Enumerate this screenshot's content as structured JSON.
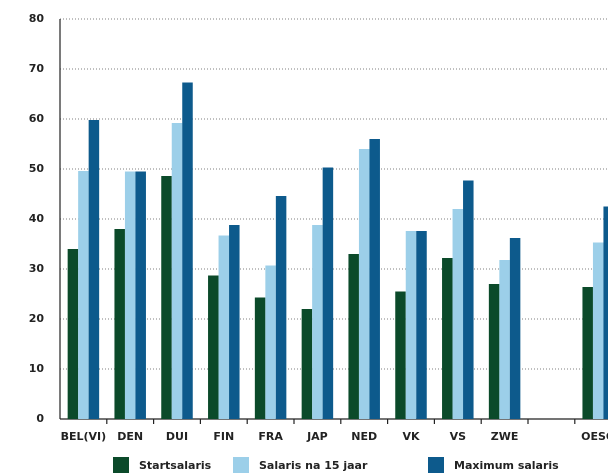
{
  "chart_data": {
    "type": "bar",
    "categories": [
      "BEL(VI)",
      "DEN",
      "DUI",
      "FIN",
      "FRA",
      "JAP",
      "NED",
      "VK",
      "VS",
      "ZWE",
      null,
      "OESO"
    ],
    "series": [
      {
        "name": "Startsalaris",
        "color": "#0b4a2a",
        "values": [
          34,
          38,
          48.6,
          28.7,
          24.3,
          22,
          33,
          25.5,
          32.2,
          27,
          null,
          26.4
        ]
      },
      {
        "name": "Salaris na 15 jaar",
        "color": "#9ccfe9",
        "values": [
          49.6,
          49.5,
          59.2,
          36.7,
          30.7,
          38.8,
          54,
          37.6,
          42,
          31.8,
          null,
          35.3
        ]
      },
      {
        "name": "Maximum salaris",
        "color": "#0d5a8c",
        "values": [
          59.8,
          49.5,
          67.3,
          38.8,
          44.6,
          50.3,
          56,
          37.6,
          47.7,
          36.2,
          null,
          42.5
        ]
      }
    ],
    "ylim": [
      0,
      80
    ],
    "yticks": [
      0,
      10,
      20,
      30,
      40,
      50,
      60,
      70,
      80
    ],
    "grid": true
  }
}
